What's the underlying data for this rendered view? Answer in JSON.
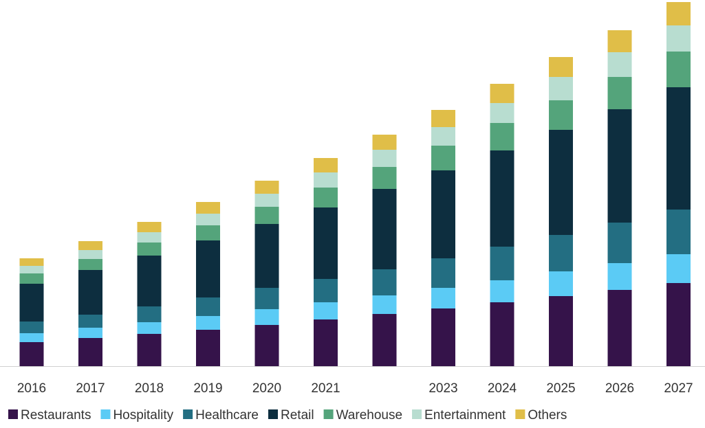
{
  "chart_data": {
    "type": "bar",
    "stacked": true,
    "categories": [
      "2016",
      "2017",
      "2018",
      "2019",
      "2020",
      "2021",
      "",
      "2023",
      "2024",
      "2025",
      "2026",
      "2027"
    ],
    "ylim": [
      0,
      530
    ],
    "grid": false,
    "legend_position": "bottom",
    "series": [
      {
        "name": "Restaurants",
        "color": "#35134A",
        "values": [
          35,
          41,
          47,
          53,
          60,
          68,
          76,
          84,
          93,
          102,
          111,
          121
        ]
      },
      {
        "name": "Hospitality",
        "color": "#5BCBF5",
        "values": [
          13,
          15,
          17,
          20,
          23,
          25,
          27,
          30,
          32,
          36,
          39,
          42
        ]
      },
      {
        "name": "Healthcare",
        "color": "#236E82",
        "values": [
          17,
          19,
          23,
          27,
          31,
          34,
          38,
          43,
          49,
          53,
          59,
          65
        ]
      },
      {
        "name": "Retail",
        "color": "#0D2E3F",
        "values": [
          55,
          65,
          74,
          83,
          93,
          104,
          117,
          128,
          140,
          153,
          165,
          178
        ]
      },
      {
        "name": "Warehouse",
        "color": "#54A47B",
        "values": [
          15,
          16,
          19,
          22,
          25,
          29,
          32,
          36,
          40,
          43,
          47,
          52
        ]
      },
      {
        "name": "Entertainment",
        "color": "#B8DDD0",
        "values": [
          11,
          13,
          15,
          17,
          19,
          22,
          25,
          27,
          29,
          34,
          36,
          38
        ]
      },
      {
        "name": "Others",
        "color": "#E0BE48",
        "values": [
          11,
          13,
          15,
          17,
          19,
          21,
          22,
          25,
          28,
          29,
          32,
          34
        ]
      }
    ]
  }
}
